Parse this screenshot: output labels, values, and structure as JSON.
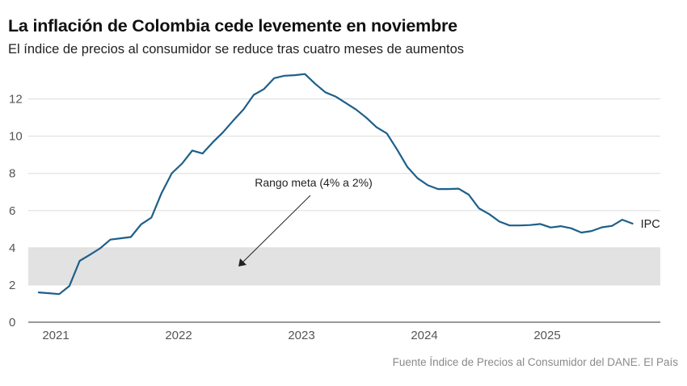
{
  "chart_data": {
    "type": "line",
    "title": "La inflación de Colombia cede levemente en noviembre",
    "subtitle": "El índice de precios al consumidor se reduce tras cuatro meses de aumentos",
    "source": "Fuente Índice de Precios al Consumidor del DANE. El País",
    "x_tick_labels": [
      "2021",
      "2022",
      "2023",
      "2024",
      "2025"
    ],
    "y_ticks": [
      0,
      2,
      4,
      6,
      8,
      10,
      12
    ],
    "ylim": [
      0,
      13.5
    ],
    "grid": true,
    "band": {
      "from": 2,
      "to": 4,
      "label": "Rango meta (4% a 2%)",
      "color": "#e2e2e2"
    },
    "series": [
      {
        "name": "IPC",
        "color": "#1d5f8a",
        "x": [
          "2021-01",
          "2021-02",
          "2021-03",
          "2021-04",
          "2021-05",
          "2021-06",
          "2021-07",
          "2021-08",
          "2021-09",
          "2021-10",
          "2021-11",
          "2021-12",
          "2022-01",
          "2022-02",
          "2022-03",
          "2022-04",
          "2022-05",
          "2022-06",
          "2022-07",
          "2022-08",
          "2022-09",
          "2022-10",
          "2022-11",
          "2022-12",
          "2023-01",
          "2023-02",
          "2023-03",
          "2023-04",
          "2023-05",
          "2023-06",
          "2023-07",
          "2023-08",
          "2023-09",
          "2023-10",
          "2023-11",
          "2023-12",
          "2024-01",
          "2024-02",
          "2024-03",
          "2024-04",
          "2024-05",
          "2024-06",
          "2024-07",
          "2024-08",
          "2024-09",
          "2024-10",
          "2024-11",
          "2024-12",
          "2025-01",
          "2025-02",
          "2025-03",
          "2025-04",
          "2025-05",
          "2025-06",
          "2025-07",
          "2025-08",
          "2025-09",
          "2025-10",
          "2025-11"
        ],
        "values": [
          1.6,
          1.56,
          1.51,
          1.95,
          3.3,
          3.63,
          3.97,
          4.44,
          4.51,
          4.58,
          5.26,
          5.62,
          6.94,
          8.01,
          8.53,
          9.23,
          9.07,
          9.67,
          10.21,
          10.84,
          11.44,
          12.22,
          12.53,
          13.12,
          13.25,
          13.28,
          13.34,
          12.82,
          12.36,
          12.13,
          11.78,
          11.43,
          10.99,
          10.48,
          10.15,
          9.28,
          8.35,
          7.74,
          7.36,
          7.16,
          7.16,
          7.18,
          6.86,
          6.12,
          5.81,
          5.41,
          5.2,
          5.2,
          5.22,
          5.28,
          5.09,
          5.16,
          5.05,
          4.82,
          4.9,
          5.1,
          5.18,
          5.51,
          5.3
        ]
      }
    ]
  }
}
